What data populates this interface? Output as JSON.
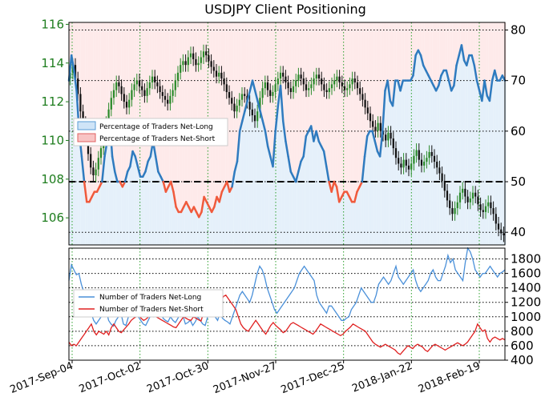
{
  "chart_data": [
    {
      "type": "line",
      "title": "USDJPY Client Positioning",
      "x_ticks": [
        "2017-Sep-04",
        "2017-Oct-02",
        "2017-Oct-30",
        "2017-Nov-27",
        "2017-Dec-25",
        "2018-Jan-22",
        "2018-Feb-19"
      ],
      "price_axis": {
        "ticks": [
          106,
          108,
          110,
          112,
          114,
          116
        ],
        "range": [
          104.6,
          116.1
        ]
      },
      "percent_axis": {
        "ticks": [
          40,
          50,
          60,
          70,
          80
        ],
        "range": [
          37.5,
          81.5
        ]
      },
      "reference_line": 50,
      "legend": [
        "Percentage of Traders Net-Long",
        "Percentage of Traders Net-Short"
      ],
      "legend_position": "upper-left",
      "grid": true,
      "net_long_percent": [
        70,
        75,
        72,
        68,
        60,
        55,
        50,
        46,
        46,
        47,
        48,
        48,
        49,
        50,
        55,
        58,
        62,
        55,
        52,
        50,
        50,
        49,
        50,
        52,
        53,
        56,
        55,
        53,
        51,
        51,
        52,
        54,
        55,
        58,
        55,
        52,
        51,
        50,
        48,
        49,
        50,
        48,
        45,
        44,
        44,
        45,
        46,
        45,
        44,
        45,
        44,
        43,
        44,
        47,
        46,
        45,
        44,
        45,
        47,
        46,
        48,
        49,
        50,
        48,
        49,
        52,
        54,
        60,
        62,
        64,
        66,
        68,
        70,
        68,
        66,
        64,
        62,
        60,
        57,
        55,
        53,
        60,
        65,
        69,
        62,
        58,
        55,
        52,
        51,
        50,
        52,
        54,
        55,
        59,
        60,
        61,
        58,
        60,
        58,
        57,
        56,
        53,
        50,
        48,
        50,
        49,
        46,
        47,
        48,
        48,
        47,
        46,
        46,
        48,
        49,
        50,
        55,
        59,
        60,
        60,
        58,
        56,
        55,
        60,
        68,
        70,
        66,
        65,
        70,
        70,
        68,
        70,
        70,
        70,
        70,
        71,
        75,
        76,
        75,
        73,
        72,
        71,
        70,
        69,
        68,
        69,
        71,
        72,
        72,
        70,
        68,
        69,
        73,
        75,
        77,
        74,
        73,
        75,
        75,
        73,
        70,
        68,
        66,
        70,
        67,
        66,
        70,
        72,
        70,
        70,
        71,
        70
      ],
      "price_candles": {
        "close": [
          113.5,
          113.9,
          113.2,
          112.4,
          111.5,
          110.9,
          110.1,
          109.3,
          108.6,
          108.2,
          108.5,
          109.1,
          109.6,
          110.4,
          110.9,
          111.6,
          112.2,
          112.6,
          113.0,
          112.8,
          112.4,
          112.0,
          111.7,
          112.1,
          112.6,
          112.9,
          113.1,
          112.8,
          112.6,
          112.3,
          112.7,
          113.0,
          113.3,
          113.0,
          112.8,
          112.5,
          112.3,
          112.1,
          111.9,
          112.3,
          112.6,
          113.1,
          113.5,
          113.9,
          114.1,
          113.9,
          114.3,
          114.5,
          114.2,
          113.9,
          114.0,
          114.3,
          114.6,
          114.4,
          114.1,
          113.8,
          113.6,
          113.3,
          113.5,
          113.2,
          112.9,
          112.5,
          112.2,
          111.9,
          111.5,
          111.8,
          112.1,
          112.4,
          112.3,
          112.0,
          111.6,
          111.3,
          111.0,
          111.5,
          112.2,
          112.7,
          113.0,
          112.6,
          112.3,
          112.5,
          112.9,
          113.2,
          113.5,
          113.3,
          113.0,
          112.7,
          112.5,
          112.8,
          113.1,
          113.4,
          113.2,
          112.9,
          112.6,
          112.7,
          112.9,
          113.2,
          113.4,
          113.2,
          112.9,
          112.6,
          112.5,
          112.7,
          112.9,
          113.1,
          113.3,
          113.0,
          112.8,
          112.6,
          112.7,
          112.9,
          113.2,
          113.0,
          112.7,
          112.4,
          112.1,
          111.7,
          111.4,
          111.0,
          110.7,
          110.5,
          110.9,
          110.5,
          110.3,
          110.0,
          110.4,
          110.1,
          109.6,
          109.1,
          108.8,
          108.6,
          109.0,
          108.7,
          108.5,
          108.8,
          109.2,
          109.5,
          109.0,
          108.7,
          108.9,
          109.1,
          109.4,
          109.2,
          108.9,
          108.6,
          108.3,
          107.9,
          107.4,
          106.9,
          106.5,
          106.2,
          106.5,
          106.8,
          107.3,
          107.5,
          107.1,
          106.8,
          107.0,
          107.3,
          107.1,
          106.7,
          106.4,
          106.3,
          106.6,
          106.8,
          106.5,
          106.2,
          105.7,
          105.4,
          105.2,
          105.1
        ]
      }
    },
    {
      "type": "line",
      "y_ticks": [
        400,
        600,
        800,
        1000,
        1200,
        1400,
        1600,
        1800
      ],
      "range": [
        400,
        1950
      ],
      "legend": [
        "Number of Traders Net-Long",
        "Number of Traders Net-Short"
      ],
      "legend_position": "middle-left",
      "grid": true,
      "series": [
        {
          "name": "Number of Traders Net-Long",
          "color": "#4a90d9",
          "values": [
            1500,
            1720,
            1650,
            1580,
            1600,
            1450,
            1350,
            1300,
            1250,
            1050,
            950,
            900,
            950,
            1000,
            1080,
            1100,
            950,
            900,
            870,
            950,
            1000,
            1050,
            900,
            880,
            1000,
            1200,
            1150,
            1050,
            1000,
            950,
            900,
            880,
            950,
            1020,
            1000,
            1100,
            1150,
            1100,
            980,
            950,
            930,
            1000,
            950,
            920,
            980,
            1050,
            1020,
            900,
            920,
            950,
            880,
            930,
            1000,
            950,
            900,
            880,
            1000,
            1200,
            1100,
            1000,
            950,
            1050,
            980,
            950,
            930,
            900,
            1000,
            1100,
            1200,
            1300,
            1350,
            1300,
            1250,
            1200,
            1300,
            1450,
            1600,
            1700,
            1650,
            1550,
            1400,
            1300,
            1200,
            1100,
            1050,
            1100,
            1150,
            1200,
            1250,
            1300,
            1350,
            1400,
            1500,
            1600,
            1650,
            1700,
            1650,
            1600,
            1550,
            1500,
            1300,
            1200,
            1150,
            1100,
            1050,
            1150,
            1150,
            1100,
            1050,
            1000,
            950,
            950,
            980,
            1000,
            1100,
            1150,
            1200,
            1300,
            1400,
            1350,
            1300,
            1250,
            1200,
            1200,
            1300,
            1450,
            1500,
            1550,
            1500,
            1450,
            1500,
            1600,
            1700,
            1550,
            1500,
            1450,
            1500,
            1550,
            1600,
            1650,
            1500,
            1400,
            1350,
            1400,
            1450,
            1500,
            1600,
            1650,
            1550,
            1500,
            1500,
            1600,
            1700,
            1850,
            1750,
            1800,
            1650,
            1600,
            1550,
            1500,
            1750,
            1950,
            1900,
            1800,
            1650,
            1600,
            1550,
            1600,
            1600,
            1650,
            1700,
            1650,
            1600,
            1550,
            1600,
            1620,
            1650
          ]
        },
        {
          "name": "Number of Traders Net-Short",
          "color": "#e02020",
          "values": [
            650,
            600,
            620,
            600,
            650,
            700,
            750,
            800,
            850,
            900,
            800,
            750,
            800,
            780,
            760,
            800,
            750,
            850,
            900,
            850,
            800,
            780,
            820,
            860,
            900,
            950,
            980,
            1000,
            1020,
            980,
            950,
            970,
            1000,
            1020,
            1050,
            1000,
            980,
            960,
            940,
            920,
            900,
            880,
            860,
            850,
            900,
            950,
            1000,
            980,
            960,
            950,
            1000,
            980,
            960,
            940,
            1050,
            1150,
            1100,
            1100,
            1200,
            1300,
            1250,
            1200,
            1280,
            1300,
            1250,
            1200,
            1150,
            1100,
            1000,
            900,
            850,
            820,
            800,
            850,
            900,
            950,
            900,
            850,
            800,
            760,
            820,
            880,
            920,
            880,
            850,
            820,
            780,
            800,
            850,
            900,
            920,
            900,
            880,
            860,
            840,
            820,
            800,
            780,
            760,
            800,
            850,
            900,
            880,
            860,
            840,
            820,
            800,
            780,
            760,
            740,
            760,
            800,
            830,
            860,
            900,
            880,
            860,
            840,
            820,
            800,
            750,
            700,
            650,
            620,
            600,
            580,
            600,
            620,
            600,
            580,
            560,
            540,
            500,
            480,
            520,
            560,
            600,
            580,
            560,
            600,
            620,
            600,
            580,
            540,
            520,
            560,
            600,
            620,
            600,
            580,
            560,
            540,
            560,
            580,
            600,
            620,
            640,
            620,
            600,
            620,
            650,
            700,
            750,
            800,
            900,
            850,
            800,
            820,
            700,
            650,
            700,
            720,
            700,
            680,
            700,
            680
          ]
        }
      ]
    }
  ]
}
